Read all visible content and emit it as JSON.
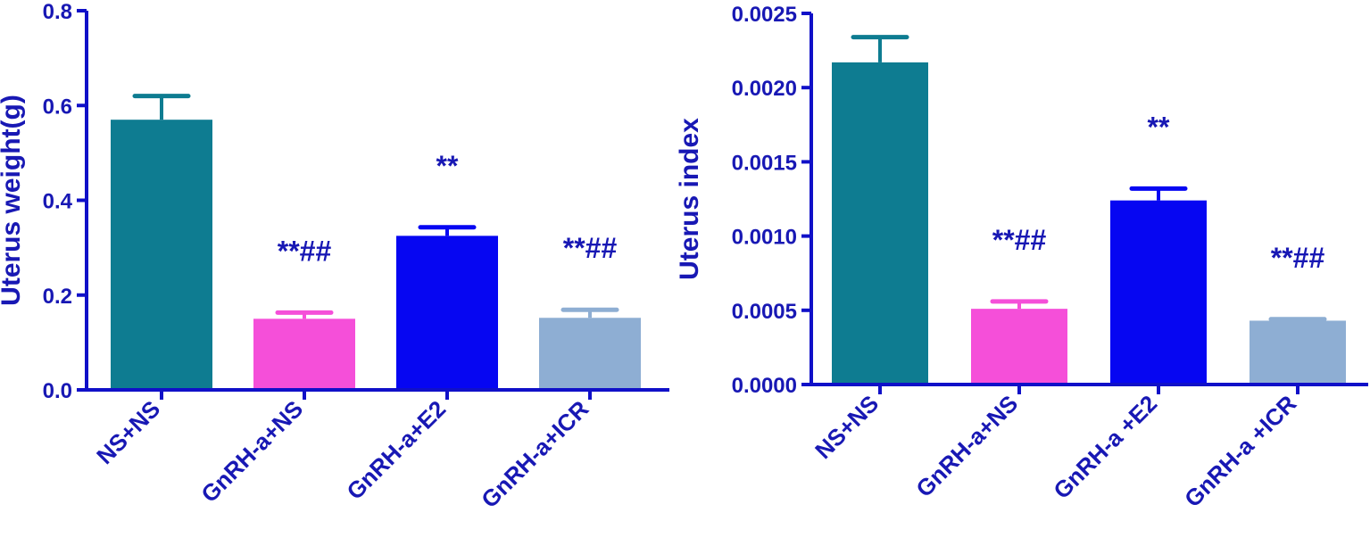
{
  "chart_data": [
    {
      "type": "bar",
      "title": "",
      "xlabel": "",
      "ylabel": "Uterus weight(g)",
      "ylim": [
        0,
        0.8
      ],
      "yticks": [
        "0.0",
        "0.2",
        "0.4",
        "0.6",
        "0.8"
      ],
      "categories": [
        "NS+NS",
        "GnRH-a+NS",
        "GnRH-a+E2",
        "GnRH-a+ICR"
      ],
      "values": [
        0.57,
        0.15,
        0.325,
        0.152
      ],
      "errors": [
        0.05,
        0.013,
        0.018,
        0.017
      ],
      "annotations": [
        "",
        "**##",
        "**",
        "**##"
      ],
      "colors": [
        "#0e7c91",
        "#f54fd9",
        "#0606f2",
        "#8eaed3"
      ],
      "grid": false,
      "legend": "none"
    },
    {
      "type": "bar",
      "title": "",
      "xlabel": "",
      "ylabel": "Uterus index",
      "ylim": [
        0,
        0.0025
      ],
      "yticks": [
        "0.0000",
        "0.0005",
        "0.0010",
        "0.0015",
        "0.0020",
        "0.0025"
      ],
      "categories": [
        "NS+NS",
        "GnRH-a+NS",
        "GnRH-a +E2",
        "GnRH-a +ICR"
      ],
      "values": [
        0.00217,
        0.00051,
        0.00124,
        0.00043
      ],
      "errors": [
        0.00017,
        5e-05,
        8e-05,
        1e-05
      ],
      "annotations": [
        "",
        "**##",
        "**",
        "**##"
      ],
      "colors": [
        "#0e7c91",
        "#f54fd9",
        "#0606f2",
        "#8eaed3"
      ],
      "grid": false,
      "legend": "none"
    }
  ]
}
